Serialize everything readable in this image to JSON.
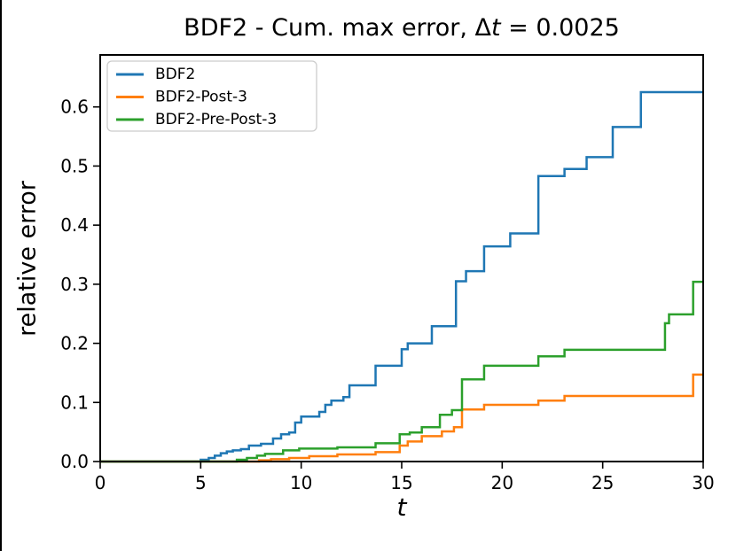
{
  "window": {
    "border_color": "#000000",
    "background": "#ffffff"
  },
  "chart": {
    "title_prefix": "BDF2 - Cum. max error, Δ",
    "title_italic": "t",
    "title_suffix": " = 0.0025",
    "title_full": "BDF2 - Cum. max error, Δt = 0.0025",
    "ylabel": "relative error",
    "xlabel": "t"
  },
  "chart_data": {
    "type": "line",
    "step_interpolation": "post",
    "title": "BDF2 - Cum. max error, Δt = 0.0025",
    "xlabel": "t",
    "ylabel": "relative error",
    "xlim": [
      0,
      30
    ],
    "ylim": [
      0,
      0.688
    ],
    "xticks": [
      0,
      5,
      10,
      15,
      20,
      25,
      30
    ],
    "xtick_labels": [
      "0",
      "5",
      "10",
      "15",
      "20",
      "25",
      "30"
    ],
    "ytick_values": [
      0.0,
      0.1,
      0.2,
      0.3,
      0.4,
      0.5,
      0.6
    ],
    "ytick_labels": [
      "0.0",
      "0.1",
      "0.2",
      "0.3",
      "0.4",
      "0.5",
      "0.6"
    ],
    "grid": false,
    "legend_position": "upper-left",
    "frame_color": "#000000",
    "series": [
      {
        "name": "BDF2",
        "color": "#1f77b4",
        "points": [
          [
            0,
            0
          ],
          [
            5.0,
            0.003
          ],
          [
            5.4,
            0.006
          ],
          [
            5.7,
            0.01
          ],
          [
            6.0,
            0.014
          ],
          [
            6.3,
            0.017
          ],
          [
            6.6,
            0.019
          ],
          [
            7.0,
            0.021
          ],
          [
            7.4,
            0.027
          ],
          [
            8.0,
            0.03
          ],
          [
            8.6,
            0.039
          ],
          [
            9.0,
            0.046
          ],
          [
            9.4,
            0.049
          ],
          [
            9.7,
            0.066
          ],
          [
            10.0,
            0.076
          ],
          [
            10.9,
            0.084
          ],
          [
            11.2,
            0.096
          ],
          [
            11.5,
            0.103
          ],
          [
            12.1,
            0.109
          ],
          [
            12.4,
            0.129
          ],
          [
            13.7,
            0.162
          ],
          [
            15.0,
            0.19
          ],
          [
            15.3,
            0.2
          ],
          [
            16.5,
            0.229
          ],
          [
            17.7,
            0.305
          ],
          [
            18.2,
            0.322
          ],
          [
            19.1,
            0.364
          ],
          [
            20.4,
            0.386
          ],
          [
            21.8,
            0.483
          ],
          [
            23.1,
            0.495
          ],
          [
            24.2,
            0.515
          ],
          [
            25.5,
            0.566
          ],
          [
            26.9,
            0.625
          ],
          [
            30,
            0.625
          ]
        ]
      },
      {
        "name": "BDF2-Post-3",
        "color": "#ff7f0e",
        "points": [
          [
            0,
            0
          ],
          [
            7.9,
            0.002
          ],
          [
            8.5,
            0.004
          ],
          [
            9.4,
            0.006
          ],
          [
            10.4,
            0.009
          ],
          [
            11.8,
            0.012
          ],
          [
            13.7,
            0.016
          ],
          [
            14.9,
            0.027
          ],
          [
            15.3,
            0.034
          ],
          [
            16.0,
            0.043
          ],
          [
            17.0,
            0.051
          ],
          [
            17.6,
            0.058
          ],
          [
            18.0,
            0.088
          ],
          [
            19.1,
            0.096
          ],
          [
            21.8,
            0.103
          ],
          [
            23.1,
            0.111
          ],
          [
            29.5,
            0.147
          ],
          [
            30,
            0.147
          ]
        ]
      },
      {
        "name": "BDF2-Pre-Post-3",
        "color": "#2ca02c",
        "points": [
          [
            0,
            0
          ],
          [
            6.8,
            0.003
          ],
          [
            7.3,
            0.006
          ],
          [
            7.8,
            0.01
          ],
          [
            8.2,
            0.013
          ],
          [
            9.1,
            0.019
          ],
          [
            9.9,
            0.022
          ],
          [
            11.8,
            0.024
          ],
          [
            13.7,
            0.031
          ],
          [
            14.9,
            0.046
          ],
          [
            15.4,
            0.049
          ],
          [
            16.0,
            0.058
          ],
          [
            16.9,
            0.079
          ],
          [
            17.5,
            0.087
          ],
          [
            18.0,
            0.139
          ],
          [
            19.1,
            0.162
          ],
          [
            21.8,
            0.178
          ],
          [
            23.1,
            0.189
          ],
          [
            28.1,
            0.234
          ],
          [
            28.3,
            0.249
          ],
          [
            29.5,
            0.304
          ],
          [
            30,
            0.304
          ]
        ]
      }
    ],
    "legend": {
      "items": [
        "BDF2",
        "BDF2-Post-3",
        "BDF2-Pre-Post-3"
      ],
      "border_color": "#cccccc",
      "background": "#ffffff"
    }
  }
}
